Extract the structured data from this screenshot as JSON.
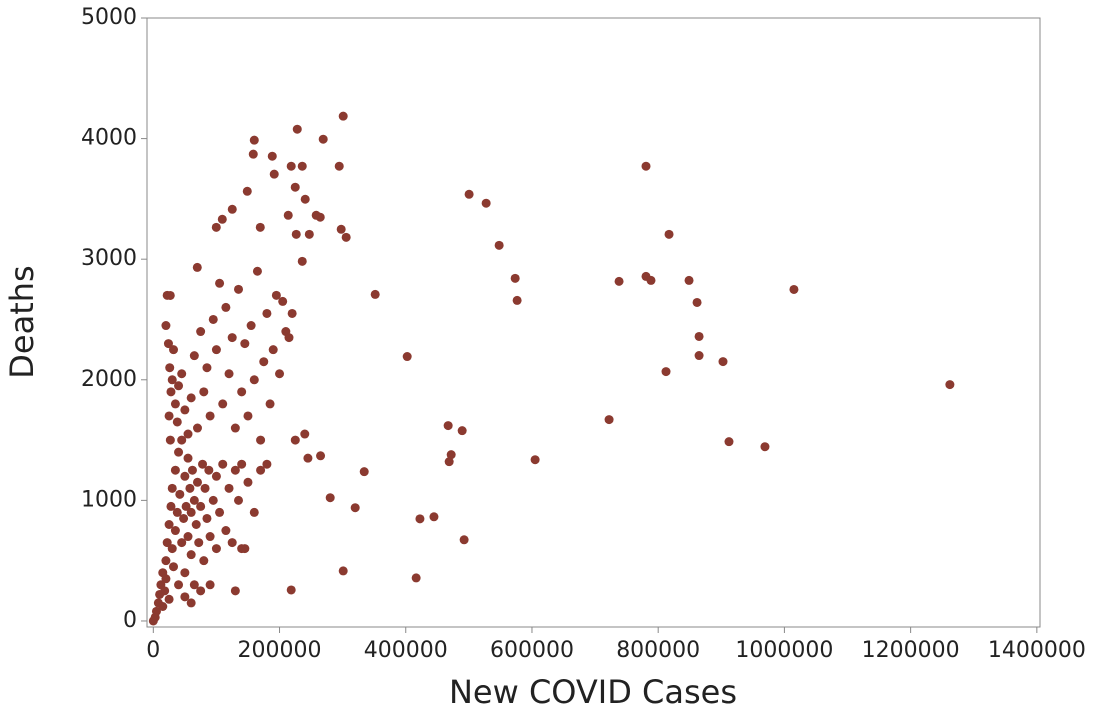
{
  "chart_data": {
    "type": "scatter",
    "xlabel": "New COVID Cases",
    "ylabel": "Deaths",
    "color": "#8b3a30",
    "xlim": [
      -10000,
      1405000
    ],
    "ylim": [
      -50,
      5000
    ],
    "xticks": [
      0,
      200000,
      400000,
      600000,
      800000,
      1000000,
      1200000,
      1400000
    ],
    "yticks": [
      0,
      1000,
      2000,
      3000,
      4000,
      5000
    ],
    "x": [
      0,
      3000,
      5000,
      8000,
      10000,
      12000,
      15000,
      15000,
      18000,
      20000,
      20000,
      22000,
      25000,
      25000,
      28000,
      30000,
      30000,
      32000,
      35000,
      35000,
      38000,
      40000,
      40000,
      42000,
      45000,
      45000,
      48000,
      50000,
      50000,
      52000,
      55000,
      55000,
      58000,
      60000,
      60000,
      62000,
      65000,
      65000,
      68000,
      70000,
      72000,
      75000,
      78000,
      80000,
      82000,
      85000,
      88000,
      90000,
      95000,
      100000,
      105000,
      110000,
      115000,
      120000,
      125000,
      130000,
      135000,
      140000,
      145000,
      150000,
      160000,
      170000,
      180000,
      20000,
      22000,
      24000,
      26000,
      28000,
      30000,
      32000,
      25000,
      27000,
      35000,
      38000,
      40000,
      45000,
      50000,
      55000,
      60000,
      65000,
      70000,
      75000,
      80000,
      85000,
      90000,
      95000,
      100000,
      105000,
      110000,
      115000,
      120000,
      125000,
      130000,
      135000,
      140000,
      145000,
      150000,
      155000,
      160000,
      165000,
      170000,
      175000,
      180000,
      185000,
      190000,
      195000,
      200000,
      205000,
      210000,
      215000,
      220000,
      225000,
      240000,
      245000,
      265000,
      100000,
      90000,
      130000,
      75000,
      140000,
      50000,
      60000,
      300900,
      228100,
      269200,
      160000,
      158400,
      188500,
      191600,
      218500,
      236000,
      294600,
      224900,
      148900,
      297700,
      305600,
      240700,
      213800,
      258100,
      264500,
      226500,
      247200,
      236000,
      125100,
      109300,
      99800,
      169500,
      69700,
      26900,
      500400,
      527400,
      548000,
      573400,
      576500,
      351600,
      402300,
      467200,
      472000,
      468800,
      489400,
      334200,
      280300,
      319900,
      422500,
      444700,
      492500,
      300900,
      416500,
      218500,
      605000,
      722200,
      780700,
      738000,
      780700,
      788600,
      817200,
      812400,
      848900,
      861600,
      864800,
      864800,
      902700,
      912200,
      969200,
      1015100,
      1262200
    ],
    "y": [
      0,
      30,
      80,
      150,
      220,
      300,
      120,
      400,
      250,
      500,
      350,
      650,
      800,
      180,
      950,
      1100,
      600,
      450,
      1250,
      750,
      900,
      1400,
      300,
      1050,
      650,
      1500,
      850,
      1200,
      400,
      950,
      700,
      1350,
      1100,
      550,
      900,
      1250,
      1000,
      300,
      800,
      1150,
      650,
      950,
      1300,
      500,
      1100,
      850,
      1250,
      700,
      1000,
      1200,
      900,
      1300,
      750,
      1100,
      650,
      1250,
      1000,
      1300,
      600,
      1150,
      900,
      1250,
      1300,
      2450,
      2700,
      2300,
      2100,
      1900,
      2000,
      2250,
      1700,
      1500,
      1800,
      1650,
      1950,
      2050,
      1750,
      1550,
      1850,
      2200,
      1600,
      2400,
      1900,
      2100,
      1700,
      2500,
      2250,
      2800,
      1800,
      2600,
      2050,
      2350,
      1600,
      2750,
      1900,
      2300,
      1700,
      2450,
      2000,
      2900,
      1500,
      2150,
      2550,
      1800,
      2250,
      2700,
      2050,
      2650,
      2400,
      2350,
      2550,
      1500,
      1550,
      1350,
      1370,
      600,
      300,
      250,
      250,
      600,
      200,
      150,
      4186,
      4078,
      3995,
      3987,
      3871,
      3854,
      3705,
      3771,
      3771,
      3771,
      3597,
      3563,
      3248,
      3181,
      3497,
      3364,
      3364,
      3348,
      3206,
      3206,
      2982,
      3414,
      3331,
      3264,
      3264,
      2932,
      2699,
      3538,
      3464,
      3115,
      2841,
      2658,
      2708,
      2193,
      1620,
      1379,
      1321,
      1578,
      1238,
      1022,
      939,
      847,
      864,
      673,
      415,
      357,
      257,
      1337,
      1670,
      3771,
      2816,
      2857,
      2824,
      3206,
      2068,
      2824,
      2641,
      2359,
      2201,
      2151,
      1487,
      1445,
      2749,
      1960
    ]
  }
}
